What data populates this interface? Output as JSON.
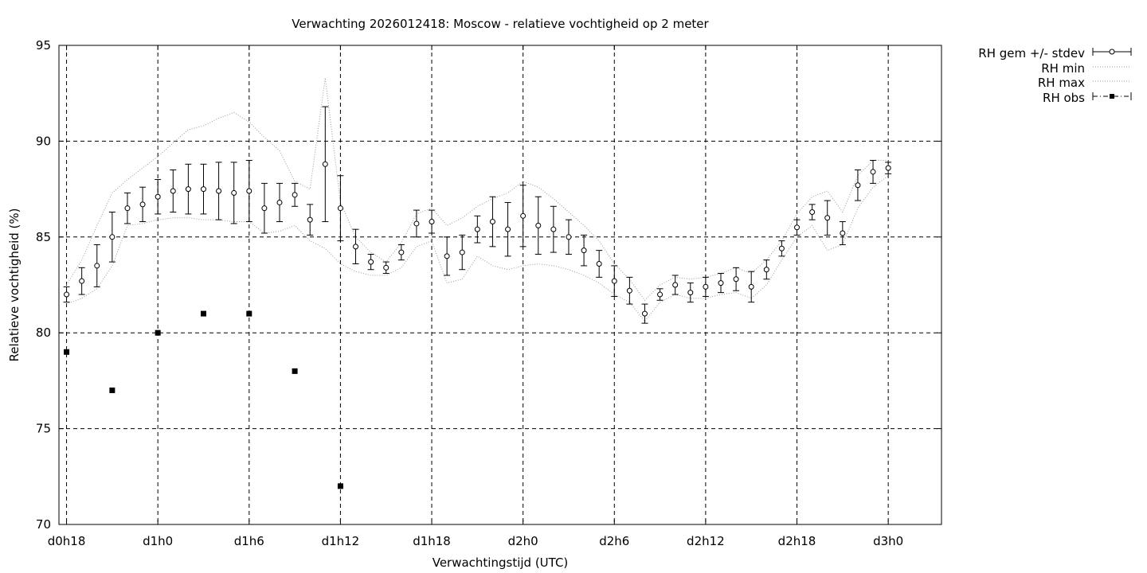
{
  "chart_data": {
    "type": "line",
    "title": "Verwachting 2026012418: Moscow - relatieve vochtigheid op 2 meter",
    "xlabel": "Verwachtingstijd (UTC)",
    "ylabel": "Relatieve vochtigheid (%)",
    "ylim": [
      70,
      95
    ],
    "yticks": [
      70,
      75,
      80,
      85,
      90,
      95
    ],
    "xlim": [
      -0.5,
      57.5
    ],
    "xticks": [
      {
        "x": 0,
        "label": "d0h18"
      },
      {
        "x": 6,
        "label": "d1h0"
      },
      {
        "x": 12,
        "label": "d1h6"
      },
      {
        "x": 18,
        "label": "d1h12"
      },
      {
        "x": 24,
        "label": "d1h18"
      },
      {
        "x": 30,
        "label": "d2h0"
      },
      {
        "x": 36,
        "label": "d2h6"
      },
      {
        "x": 42,
        "label": "d2h12"
      },
      {
        "x": 48,
        "label": "d2h18"
      },
      {
        "x": 54,
        "label": "d3h0"
      }
    ],
    "grid": true,
    "legend_position": "outside-top-right",
    "legend": [
      "RH gem +/- stdev",
      "RH min",
      "RH max",
      "RH obs"
    ],
    "mean": [
      82.0,
      82.7,
      83.5,
      85.0,
      86.5,
      86.7,
      87.1,
      87.4,
      87.5,
      87.5,
      87.4,
      87.3,
      87.4,
      86.5,
      86.8,
      87.2,
      85.9,
      88.8,
      86.5,
      84.5,
      83.7,
      83.4,
      84.2,
      85.7,
      85.8,
      84.0,
      84.2,
      85.4,
      85.8,
      85.4,
      86.1,
      85.6,
      85.4,
      85.0,
      84.3,
      83.6,
      82.7,
      82.2,
      81.0,
      82.0,
      82.5,
      82.1,
      82.4,
      82.6,
      82.8,
      82.4,
      83.3,
      84.4,
      85.5,
      86.3,
      86.0,
      85.2,
      87.7,
      88.4,
      88.6
    ],
    "stdev": [
      0.4,
      0.7,
      1.1,
      1.3,
      0.8,
      0.9,
      0.9,
      1.1,
      1.3,
      1.3,
      1.5,
      1.6,
      1.6,
      1.3,
      1.0,
      0.6,
      0.8,
      3.0,
      1.7,
      0.9,
      0.4,
      0.3,
      0.4,
      0.7,
      0.6,
      1.0,
      0.9,
      0.7,
      1.3,
      1.4,
      1.6,
      1.5,
      1.2,
      0.9,
      0.8,
      0.7,
      0.8,
      0.7,
      0.5,
      0.3,
      0.5,
      0.5,
      0.5,
      0.5,
      0.6,
      0.8,
      0.5,
      0.4,
      0.4,
      0.4,
      0.9,
      0.6,
      0.8,
      0.6,
      0.3
    ],
    "min": [
      81.5,
      81.8,
      82.3,
      83.5,
      85.6,
      85.7,
      85.9,
      86.0,
      86.0,
      85.9,
      85.9,
      85.8,
      85.8,
      85.2,
      85.3,
      85.6,
      84.8,
      84.4,
      83.6,
      83.2,
      83.0,
      83.0,
      83.4,
      84.5,
      84.8,
      82.6,
      82.8,
      84.0,
      83.5,
      83.3,
      83.5,
      83.6,
      83.5,
      83.3,
      83.0,
      82.6,
      82.0,
      81.6,
      80.6,
      81.6,
      82.0,
      81.8,
      81.8,
      82.0,
      82.1,
      81.8,
      82.5,
      83.8,
      85.0,
      85.6,
      84.3,
      84.6,
      86.5,
      87.6,
      88.2
    ],
    "max": [
      82.5,
      83.8,
      85.6,
      87.3,
      88.0,
      88.6,
      89.2,
      89.9,
      90.6,
      90.8,
      91.2,
      91.5,
      91.0,
      90.2,
      89.5,
      87.9,
      87.5,
      93.3,
      86.8,
      85.0,
      84.2,
      83.7,
      84.7,
      86.2,
      86.5,
      85.6,
      86.0,
      86.6,
      87.0,
      87.3,
      87.9,
      87.6,
      87.0,
      86.3,
      85.6,
      84.8,
      83.6,
      82.8,
      81.7,
      82.5,
      82.9,
      82.8,
      82.9,
      83.1,
      83.4,
      83.1,
      83.8,
      84.8,
      86.2,
      87.1,
      87.4,
      86.3,
      88.2,
      89.0,
      89.0
    ],
    "obs": [
      {
        "x": 0,
        "y": 79
      },
      {
        "x": 3,
        "y": 77
      },
      {
        "x": 6,
        "y": 80
      },
      {
        "x": 9,
        "y": 81
      },
      {
        "x": 12,
        "y": 81
      },
      {
        "x": 15,
        "y": 78
      },
      {
        "x": 18,
        "y": 72
      }
    ]
  }
}
